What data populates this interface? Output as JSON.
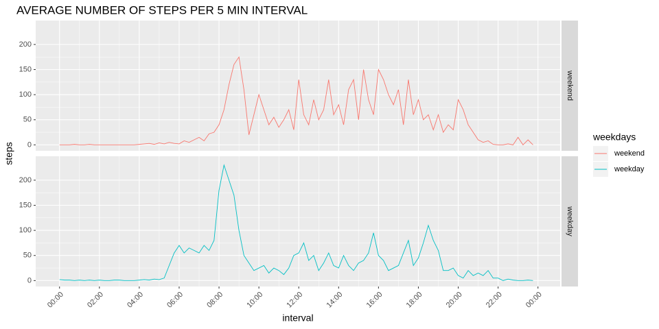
{
  "chart_data": {
    "type": "line",
    "title": "AVERAGE NUMBER OF STEPS PER 5 MIN INTERVAL",
    "x_label": "interval",
    "y_label": "steps",
    "legend_title": "weekdays",
    "legend": "right",
    "grid": true,
    "facets": true,
    "x": [
      0,
      15,
      30,
      45,
      60,
      75,
      90,
      105,
      120,
      135,
      150,
      165,
      180,
      195,
      210,
      225,
      240,
      255,
      270,
      285,
      300,
      315,
      330,
      345,
      360,
      375,
      390,
      405,
      420,
      435,
      450,
      465,
      480,
      495,
      510,
      525,
      540,
      555,
      570,
      585,
      600,
      615,
      630,
      645,
      660,
      675,
      690,
      705,
      720,
      735,
      750,
      765,
      780,
      795,
      810,
      825,
      840,
      855,
      870,
      885,
      900,
      915,
      930,
      945,
      960,
      975,
      990,
      1005,
      1020,
      1035,
      1050,
      1065,
      1080,
      1095,
      1110,
      1125,
      1140,
      1155,
      1170,
      1185,
      1200,
      1215,
      1230,
      1245,
      1260,
      1275,
      1290,
      1305,
      1320,
      1335,
      1350,
      1365,
      1380,
      1395,
      1410,
      1425
    ],
    "series": [
      {
        "name": "weekend",
        "color": "#F8766D",
        "values": [
          0,
          0,
          0,
          1,
          0,
          0,
          1,
          0,
          0,
          0,
          0,
          0,
          0,
          0,
          0,
          0,
          1,
          2,
          3,
          1,
          4,
          2,
          5,
          3,
          2,
          8,
          5,
          10,
          15,
          8,
          22,
          25,
          40,
          70,
          120,
          160,
          175,
          110,
          20,
          60,
          100,
          70,
          40,
          55,
          35,
          50,
          70,
          30,
          130,
          60,
          40,
          90,
          50,
          70,
          130,
          60,
          80,
          40,
          110,
          130,
          50,
          150,
          90,
          60,
          150,
          130,
          100,
          80,
          110,
          40,
          130,
          60,
          90,
          50,
          60,
          30,
          60,
          25,
          40,
          30,
          90,
          70,
          40,
          25,
          10,
          5,
          8,
          1,
          0,
          0,
          2,
          0,
          15,
          0,
          10,
          0
        ]
      },
      {
        "name": "weekday",
        "color": "#00BFC4",
        "values": [
          2,
          1,
          1,
          0,
          1,
          0,
          1,
          0,
          1,
          0,
          0,
          1,
          1,
          0,
          0,
          0,
          1,
          2,
          1,
          3,
          2,
          5,
          30,
          55,
          70,
          55,
          65,
          60,
          55,
          70,
          60,
          80,
          180,
          230,
          200,
          170,
          100,
          50,
          35,
          20,
          25,
          30,
          15,
          25,
          20,
          12,
          25,
          50,
          55,
          75,
          40,
          50,
          20,
          35,
          55,
          30,
          25,
          50,
          30,
          20,
          35,
          40,
          55,
          95,
          50,
          40,
          20,
          25,
          30,
          55,
          80,
          30,
          45,
          75,
          110,
          80,
          60,
          20,
          20,
          25,
          10,
          5,
          20,
          10,
          15,
          10,
          20,
          5,
          5,
          0,
          3,
          1,
          0,
          0,
          1,
          0
        ]
      }
    ],
    "xlim": [
      -71.75,
      1506.75
    ],
    "xticks": [
      {
        "value": 0,
        "label": "00:00"
      },
      {
        "value": 120,
        "label": "02:00"
      },
      {
        "value": 240,
        "label": "04:00"
      },
      {
        "value": 360,
        "label": "06:00"
      },
      {
        "value": 480,
        "label": "08:00"
      },
      {
        "value": 600,
        "label": "10:00"
      },
      {
        "value": 720,
        "label": "12:00"
      },
      {
        "value": 840,
        "label": "14:00"
      },
      {
        "value": 960,
        "label": "16:00"
      },
      {
        "value": 1080,
        "label": "18:00"
      },
      {
        "value": 1200,
        "label": "20:00"
      },
      {
        "value": 1320,
        "label": "22:00"
      },
      {
        "value": 1440,
        "label": "00:00"
      }
    ],
    "ylim": [
      -11.8,
      247.6
    ],
    "yticks": [
      0,
      50,
      100,
      150,
      200
    ]
  }
}
